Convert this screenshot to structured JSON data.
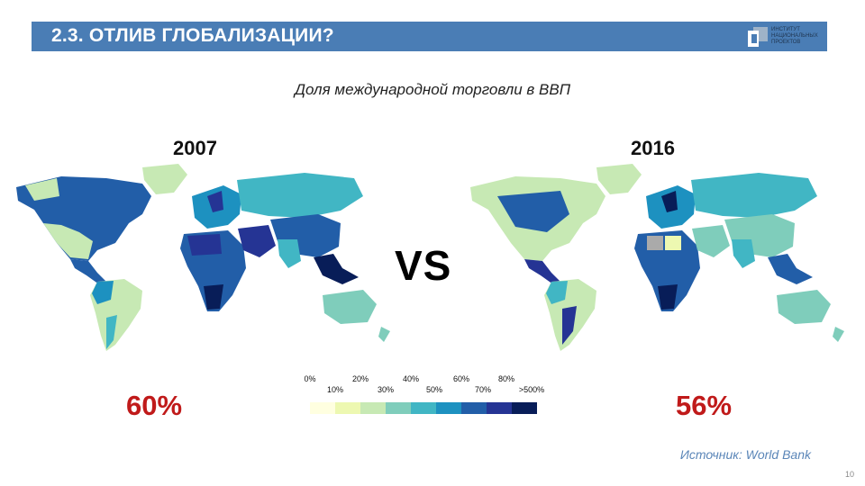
{
  "header": {
    "title": "2.3. ОТЛИВ ГЛОБАЛИЗАЦИИ?"
  },
  "logo": {
    "lines": [
      "ИНСТИТУТ",
      "НАЦИОНАЛЬНЫХ",
      "ПРОЕКТОВ"
    ]
  },
  "subtitle": "Доля международной торговли в ВВП",
  "maps": {
    "left": {
      "year": "2007",
      "value": "60%"
    },
    "right": {
      "year": "2016",
      "value": "56%"
    }
  },
  "vs_label": "VS",
  "legend": {
    "top_ticks": [
      "0%",
      "20%",
      "40%",
      "60%",
      "80%"
    ],
    "bottom_ticks": [
      "10%",
      "30%",
      "50%",
      "70%",
      ">500%"
    ],
    "colors": [
      "#ffffe0",
      "#edf8b1",
      "#c7e9b4",
      "#7fcdbb",
      "#41b6c4",
      "#1d91c0",
      "#225ea8",
      "#253494",
      "#081d58"
    ]
  },
  "source": "Источник: World Bank",
  "page_number": "10"
}
